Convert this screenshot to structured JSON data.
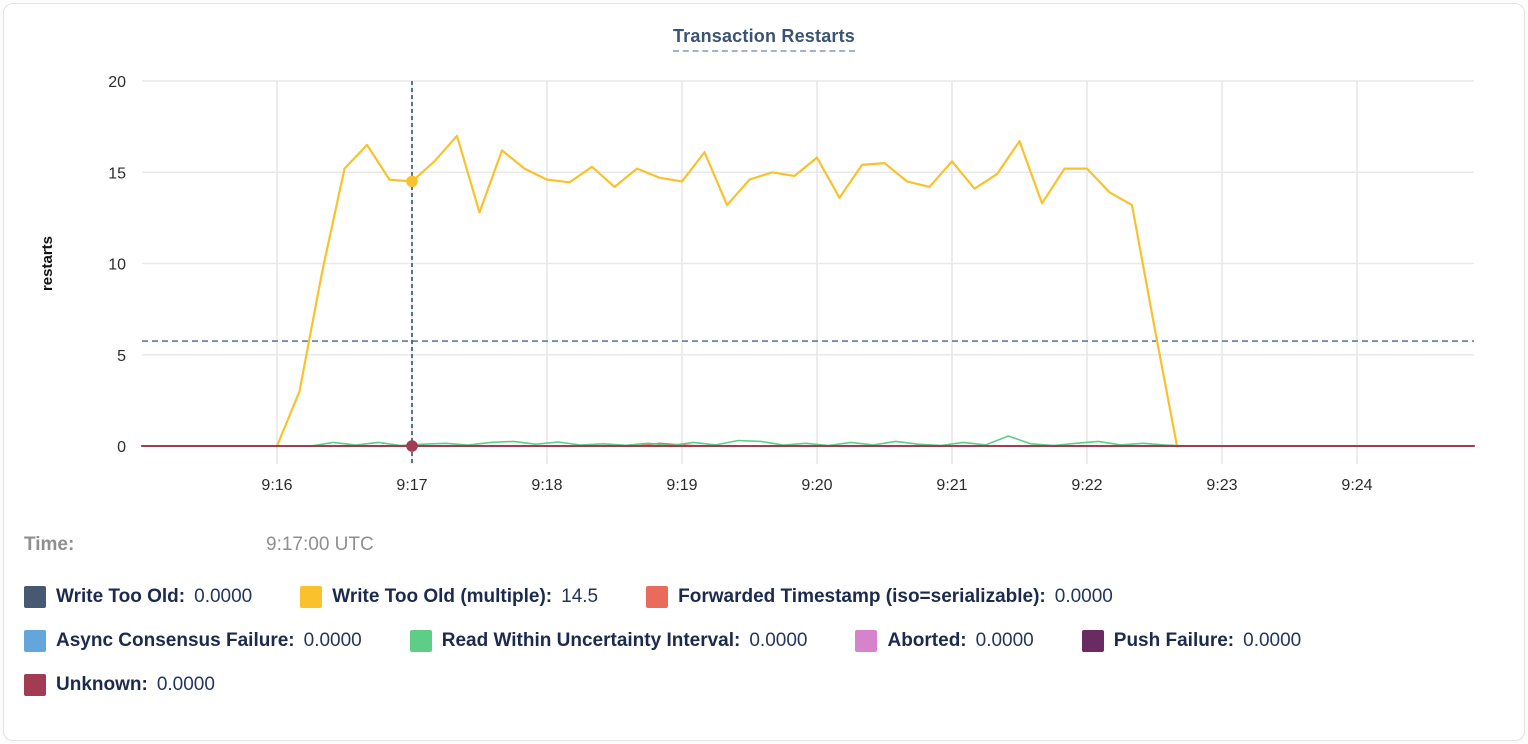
{
  "chart_data": {
    "type": "line",
    "title": "Transaction Restarts",
    "ylabel": "restarts",
    "ylim": [
      0,
      20
    ],
    "yticks": [
      0,
      5,
      10,
      15,
      20
    ],
    "x_domain_seconds": [
      900,
      1492
    ],
    "xticks": [
      {
        "label": "9:16",
        "s": 960
      },
      {
        "label": "9:17",
        "s": 1020
      },
      {
        "label": "9:18",
        "s": 1080
      },
      {
        "label": "9:19",
        "s": 1140
      },
      {
        "label": "9:20",
        "s": 1200
      },
      {
        "label": "9:21",
        "s": 1260
      },
      {
        "label": "9:22",
        "s": 1320
      },
      {
        "label": "9:23",
        "s": 1380
      },
      {
        "label": "9:24",
        "s": 1440
      }
    ],
    "grid": true,
    "legend_position": "bottom",
    "threshold_line": {
      "value": 5.75,
      "color": "#5b7fa3",
      "style": "dashed"
    },
    "crosshair": {
      "s": 1020,
      "color": "#33566f",
      "style": "dashed"
    },
    "hover_points": [
      {
        "series": "Write Too Old (multiple)",
        "s": 1020,
        "value": 14.5
      },
      {
        "series": "Unknown",
        "s": 1020,
        "value": 0
      }
    ],
    "draw_order": [
      0,
      3,
      5,
      6,
      2,
      4,
      1,
      7
    ],
    "series": [
      {
        "name": "Write Too Old",
        "color": "#475872",
        "legend_value": "0.0000",
        "width": 1.5,
        "points": [
          [
            900,
            0
          ],
          [
            1492,
            0
          ]
        ]
      },
      {
        "name": "Write Too Old (multiple)",
        "color": "#fbc12c",
        "legend_value": "14.5",
        "width": 2.2,
        "points": [
          [
            960,
            0
          ],
          [
            970,
            3
          ],
          [
            980,
            9.5
          ],
          [
            990,
            15.2
          ],
          [
            1000,
            16.5
          ],
          [
            1010,
            14.6
          ],
          [
            1020,
            14.5
          ],
          [
            1030,
            15.6
          ],
          [
            1040,
            17
          ],
          [
            1050,
            12.8
          ],
          [
            1060,
            16.2
          ],
          [
            1070,
            15.2
          ],
          [
            1080,
            14.6
          ],
          [
            1090,
            14.45
          ],
          [
            1100,
            15.3
          ],
          [
            1110,
            14.2
          ],
          [
            1120,
            15.2
          ],
          [
            1130,
            14.7
          ],
          [
            1140,
            14.5
          ],
          [
            1150,
            16.1
          ],
          [
            1160,
            13.2
          ],
          [
            1170,
            14.6
          ],
          [
            1180,
            15
          ],
          [
            1190,
            14.8
          ],
          [
            1200,
            15.8
          ],
          [
            1210,
            13.6
          ],
          [
            1220,
            15.4
          ],
          [
            1230,
            15.5
          ],
          [
            1240,
            14.5
          ],
          [
            1250,
            14.2
          ],
          [
            1260,
            15.6
          ],
          [
            1270,
            14.1
          ],
          [
            1280,
            14.9
          ],
          [
            1290,
            16.7
          ],
          [
            1300,
            13.3
          ],
          [
            1310,
            15.2
          ],
          [
            1320,
            15.2
          ],
          [
            1330,
            13.9
          ],
          [
            1340,
            13.2
          ],
          [
            1350,
            6.5
          ],
          [
            1360,
            0
          ]
        ]
      },
      {
        "name": "Forwarded Timestamp (iso=serializable)",
        "color": "#e96b5d",
        "legend_value": "0.0000",
        "width": 1.6,
        "points": [
          [
            900,
            0
          ],
          [
            1120,
            0
          ],
          [
            1130,
            0.15
          ],
          [
            1140,
            0.05
          ],
          [
            1150,
            0
          ],
          [
            1492,
            0
          ]
        ]
      },
      {
        "name": "Async Consensus Failure",
        "color": "#64a5dc",
        "legend_value": "0.0000",
        "width": 1.5,
        "points": [
          [
            900,
            0
          ],
          [
            1492,
            0
          ]
        ]
      },
      {
        "name": "Read Within Uncertainty Interval",
        "color": "#5ece87",
        "legend_value": "0.0000",
        "width": 1.6,
        "points": [
          [
            900,
            0
          ],
          [
            975,
            0
          ],
          [
            985,
            0.2
          ],
          [
            995,
            0.05
          ],
          [
            1005,
            0.2
          ],
          [
            1015,
            0.03
          ],
          [
            1025,
            0.1
          ],
          [
            1035,
            0.15
          ],
          [
            1045,
            0.05
          ],
          [
            1055,
            0.2
          ],
          [
            1065,
            0.25
          ],
          [
            1075,
            0.1
          ],
          [
            1085,
            0.22
          ],
          [
            1095,
            0.05
          ],
          [
            1105,
            0.12
          ],
          [
            1115,
            0.04
          ],
          [
            1125,
            0.15
          ],
          [
            1135,
            0.03
          ],
          [
            1145,
            0.2
          ],
          [
            1155,
            0.06
          ],
          [
            1165,
            0.3
          ],
          [
            1175,
            0.25
          ],
          [
            1185,
            0.05
          ],
          [
            1195,
            0.15
          ],
          [
            1205,
            0.03
          ],
          [
            1215,
            0.2
          ],
          [
            1225,
            0.06
          ],
          [
            1235,
            0.25
          ],
          [
            1245,
            0.1
          ],
          [
            1255,
            0.03
          ],
          [
            1265,
            0.2
          ],
          [
            1275,
            0.06
          ],
          [
            1285,
            0.55
          ],
          [
            1295,
            0.12
          ],
          [
            1305,
            0.03
          ],
          [
            1315,
            0.15
          ],
          [
            1325,
            0.25
          ],
          [
            1335,
            0.06
          ],
          [
            1345,
            0.15
          ],
          [
            1355,
            0.05
          ],
          [
            1365,
            0
          ],
          [
            1492,
            0
          ]
        ]
      },
      {
        "name": "Aborted",
        "color": "#d584cb",
        "legend_value": "0.0000",
        "width": 1.5,
        "points": [
          [
            900,
            0
          ],
          [
            1492,
            0
          ]
        ]
      },
      {
        "name": "Push Failure",
        "color": "#6a2a62",
        "legend_value": "0.0000",
        "width": 1.5,
        "points": [
          [
            900,
            0
          ],
          [
            1492,
            0
          ]
        ]
      },
      {
        "name": "Unknown",
        "color": "#a23c52",
        "legend_value": "0.0000",
        "width": 2,
        "points": [
          [
            900,
            0
          ],
          [
            1492,
            0
          ]
        ]
      }
    ]
  },
  "time_row": {
    "label": "Time:",
    "value": "9:17:00 UTC"
  },
  "legend": {
    "rows": [
      [
        0,
        1,
        2
      ],
      [
        3,
        4,
        5,
        6
      ],
      [
        7
      ]
    ]
  }
}
